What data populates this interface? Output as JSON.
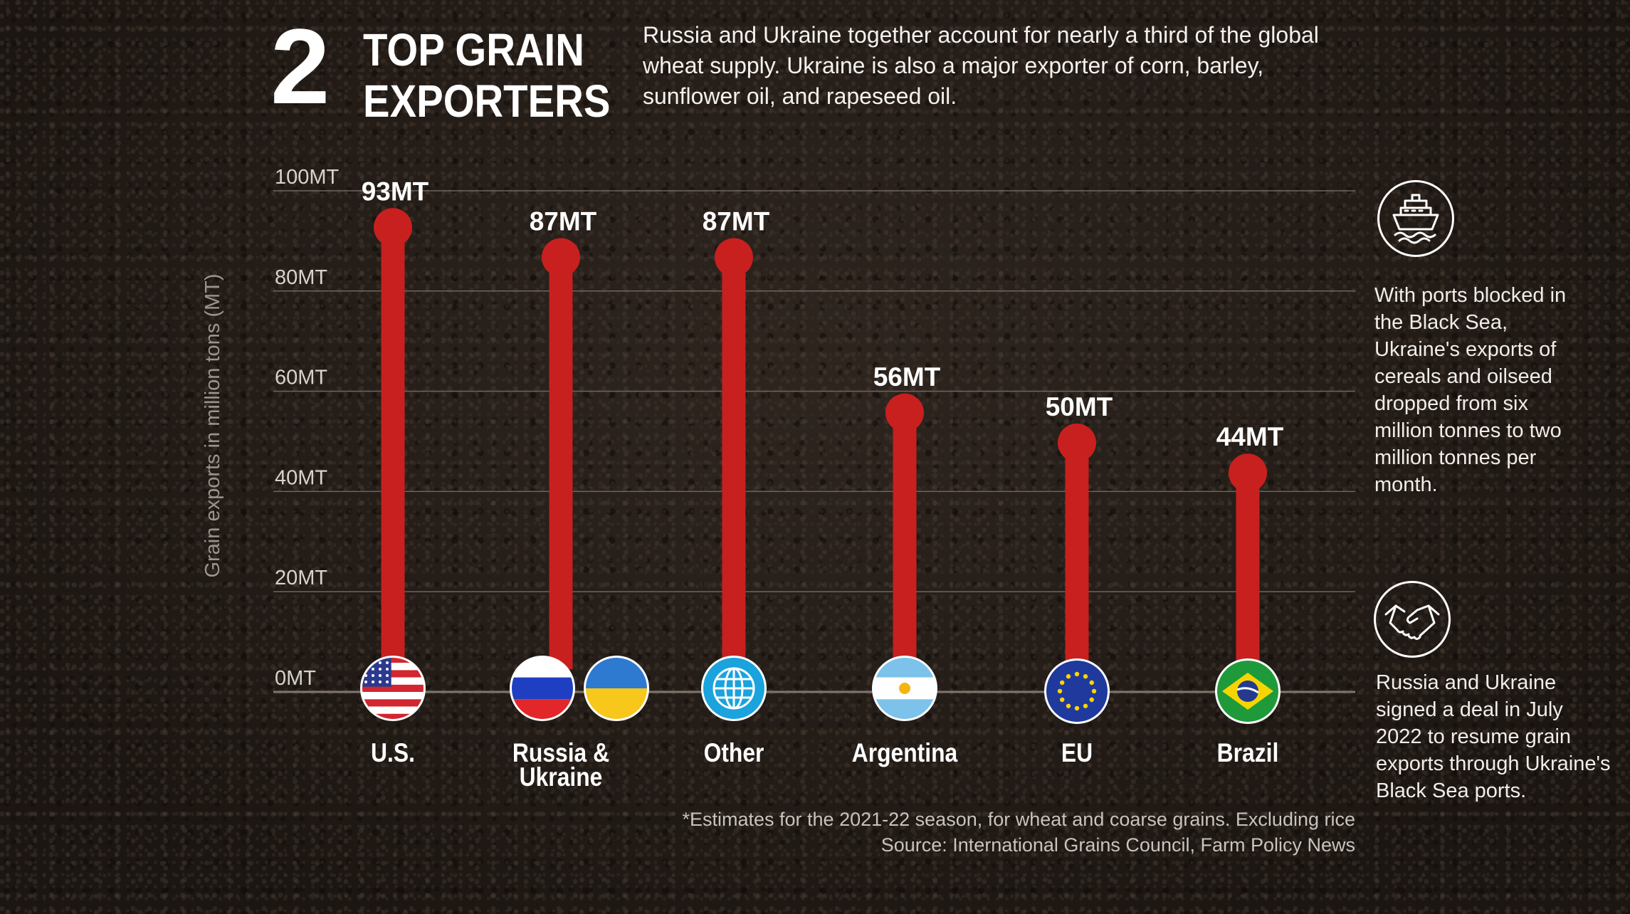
{
  "header": {
    "number": "2",
    "title_line1": "TOP GRAIN",
    "title_line2": "EXPORTERS",
    "intro": "Russia and Ukraine together account for nearly a third of the global wheat supply. Ukraine is also a major exporter of corn, barley, sunflower oil, and rapeseed oil."
  },
  "sidebar": {
    "ports_icon": "ship-icon",
    "ports_text": "With ports blocked in the Black Sea, Ukraine's exports of cereals and oilseed dropped from six million tonnes to two million tonnes per month.",
    "deal_icon": "handshake-icon",
    "deal_text": "Russia and Ukraine signed a deal in July 2022 to resume grain exports through Ukraine's Black Sea ports."
  },
  "footnote": {
    "line1": "*Estimates for the 2021-22 season, for wheat and coarse grains. Excluding rice",
    "line2": "Source: International Grains Council, Farm Policy News"
  },
  "colors": {
    "bar": "#c8201f",
    "grid": "#6e655d",
    "text": "#ffffff",
    "axis_text": "#d8d2cc"
  },
  "chart_data": {
    "type": "bar",
    "ylabel": "Grain exports in million tons (MT)",
    "ylim": [
      0,
      100
    ],
    "yticks": [
      0,
      20,
      40,
      60,
      80,
      100
    ],
    "ytick_labels": [
      "0MT",
      "20MT",
      "40MT",
      "60MT",
      "80MT",
      "100MT"
    ],
    "categories": [
      "U.S.",
      "Russia & Ukraine",
      "Other",
      "Argentina",
      "EU",
      "Brazil"
    ],
    "category_lines": [
      [
        "U.S."
      ],
      [
        "Russia &",
        "Ukraine"
      ],
      [
        "Other"
      ],
      [
        "Argentina"
      ],
      [
        "EU"
      ],
      [
        "Brazil"
      ]
    ],
    "values": [
      93,
      87,
      87,
      56,
      50,
      44
    ],
    "data_labels": [
      "93MT",
      "87MT",
      "87MT",
      "56MT",
      "50MT",
      "44MT"
    ],
    "flags": [
      "us-flag-icon",
      "russia-ukraine-flags-icon",
      "globe-icon",
      "argentina-flag-icon",
      "eu-flag-icon",
      "brazil-flag-icon"
    ],
    "grid": true
  }
}
